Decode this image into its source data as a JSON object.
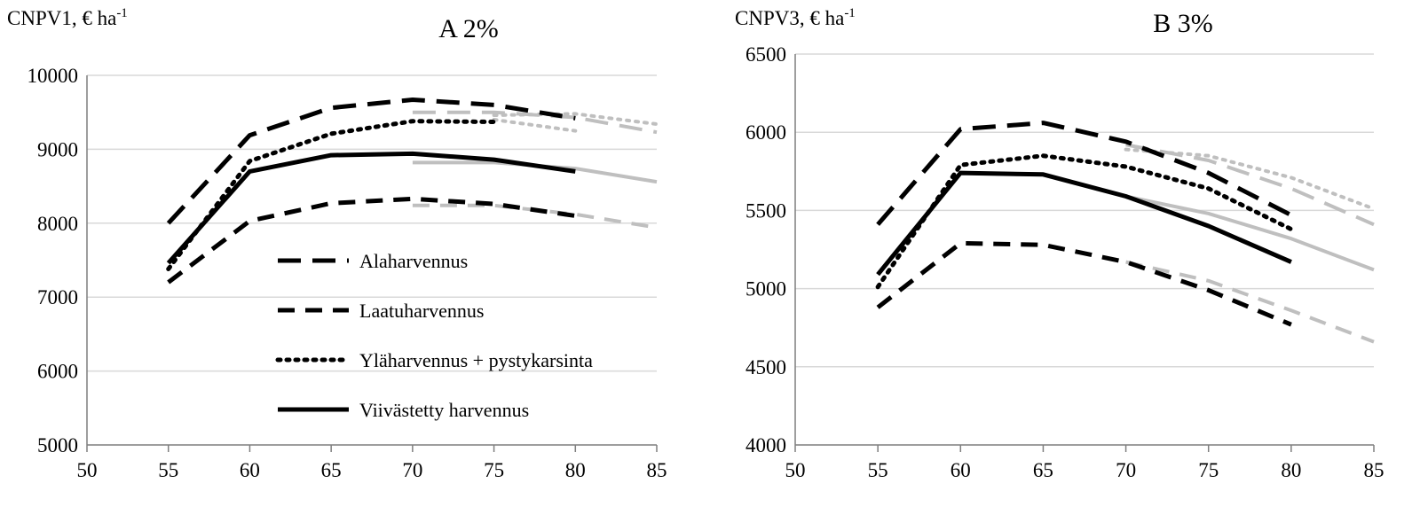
{
  "chart_data": [
    {
      "type": "line",
      "panel_title": "A 2%",
      "ylabel_main": "CNPV1, € ha",
      "ylabel_sup": "-1",
      "xlim": [
        50,
        85
      ],
      "ylim": [
        5000,
        10000
      ],
      "x_ticks": [
        "50",
        "55",
        "60",
        "65",
        "70",
        "75",
        "80",
        "85"
      ],
      "y_ticks": [
        "5000",
        "6000",
        "7000",
        "8000",
        "9000",
        "10000"
      ],
      "grid": "horizontal",
      "legend_position": "center",
      "series": [
        {
          "name": "Alaharvennus",
          "color": "#000000",
          "dash": "long",
          "x": [
            55,
            60,
            65,
            70,
            75,
            80
          ],
          "y": [
            8000,
            9190,
            9560,
            9670,
            9600,
            9420
          ]
        },
        {
          "name": "Laatuharvennus",
          "color": "#000000",
          "dash": "short",
          "x": [
            55,
            60,
            65,
            70,
            75,
            80
          ],
          "y": [
            7200,
            8030,
            8270,
            8330,
            8260,
            8100
          ]
        },
        {
          "name": "Yläharvennus + pystykarsinta",
          "color": "#000000",
          "dash": "dot",
          "x": [
            55,
            60,
            65,
            70,
            75
          ],
          "y": [
            7380,
            8840,
            9210,
            9380,
            9370
          ]
        },
        {
          "name": "Viivästetty harvennus",
          "color": "#000000",
          "dash": "solid",
          "x": [
            55,
            60,
            65,
            70,
            75,
            80
          ],
          "y": [
            7460,
            8700,
            8920,
            8940,
            8860,
            8700
          ]
        },
        {
          "color": "#bfbfbf",
          "dash": "long",
          "x": [
            70,
            75,
            80,
            85
          ],
          "y": [
            9500,
            9500,
            9430,
            9230
          ]
        },
        {
          "color": "#bfbfbf",
          "dash": "short",
          "x": [
            70,
            75,
            80,
            85
          ],
          "y": [
            8240,
            8240,
            8120,
            7940
          ]
        },
        {
          "color": "#bfbfbf",
          "dash": "dot",
          "x": [
            75,
            80,
            85
          ],
          "y": [
            9460,
            9480,
            9340
          ]
        },
        {
          "color": "#bfbfbf",
          "dash": "dot",
          "x": [
            75,
            80
          ],
          "y": [
            9400,
            9250
          ]
        },
        {
          "color": "#bfbfbf",
          "dash": "solid",
          "x": [
            70,
            75,
            80,
            85
          ],
          "y": [
            8820,
            8820,
            8740,
            8560
          ]
        }
      ]
    },
    {
      "type": "line",
      "panel_title": "B 3%",
      "ylabel_main": "CNPV3, € ha",
      "ylabel_sup": "-1",
      "xlim": [
        50,
        85
      ],
      "ylim": [
        4000,
        6500
      ],
      "x_ticks": [
        "50",
        "55",
        "60",
        "65",
        "70",
        "75",
        "80",
        "85"
      ],
      "y_ticks": [
        "4000",
        "4500",
        "5000",
        "5500",
        "6000",
        "6500"
      ],
      "grid": "horizontal",
      "series": [
        {
          "name": "Alaharvennus",
          "color": "#000000",
          "dash": "long",
          "x": [
            55,
            60,
            65,
            70,
            75,
            80
          ],
          "y": [
            5410,
            6020,
            6060,
            5940,
            5740,
            5470
          ]
        },
        {
          "name": "Laatuharvennus",
          "color": "#000000",
          "dash": "short",
          "x": [
            55,
            60,
            65,
            70,
            75,
            80
          ],
          "y": [
            4880,
            5290,
            5280,
            5170,
            4990,
            4770
          ]
        },
        {
          "name": "Yläharvennus + pystykarsinta",
          "color": "#000000",
          "dash": "dot",
          "x": [
            55,
            60,
            65,
            70,
            75,
            80
          ],
          "y": [
            5010,
            5790,
            5850,
            5780,
            5640,
            5380
          ]
        },
        {
          "name": "Viivästetty harvennus",
          "color": "#000000",
          "dash": "solid",
          "x": [
            55,
            60,
            65,
            70,
            75,
            80
          ],
          "y": [
            5090,
            5740,
            5730,
            5590,
            5400,
            5170
          ]
        },
        {
          "color": "#bfbfbf",
          "dash": "long",
          "x": [
            70,
            75,
            80,
            85
          ],
          "y": [
            5920,
            5820,
            5640,
            5410
          ]
        },
        {
          "color": "#bfbfbf",
          "dash": "short",
          "x": [
            70,
            75,
            80,
            85
          ],
          "y": [
            5170,
            5050,
            4860,
            4660
          ]
        },
        {
          "color": "#bfbfbf",
          "dash": "dot",
          "x": [
            70,
            75,
            80,
            85
          ],
          "y": [
            5890,
            5850,
            5710,
            5510
          ]
        },
        {
          "color": "#bfbfbf",
          "dash": "solid",
          "x": [
            70,
            75,
            80,
            85
          ],
          "y": [
            5590,
            5480,
            5320,
            5120
          ]
        }
      ]
    }
  ]
}
